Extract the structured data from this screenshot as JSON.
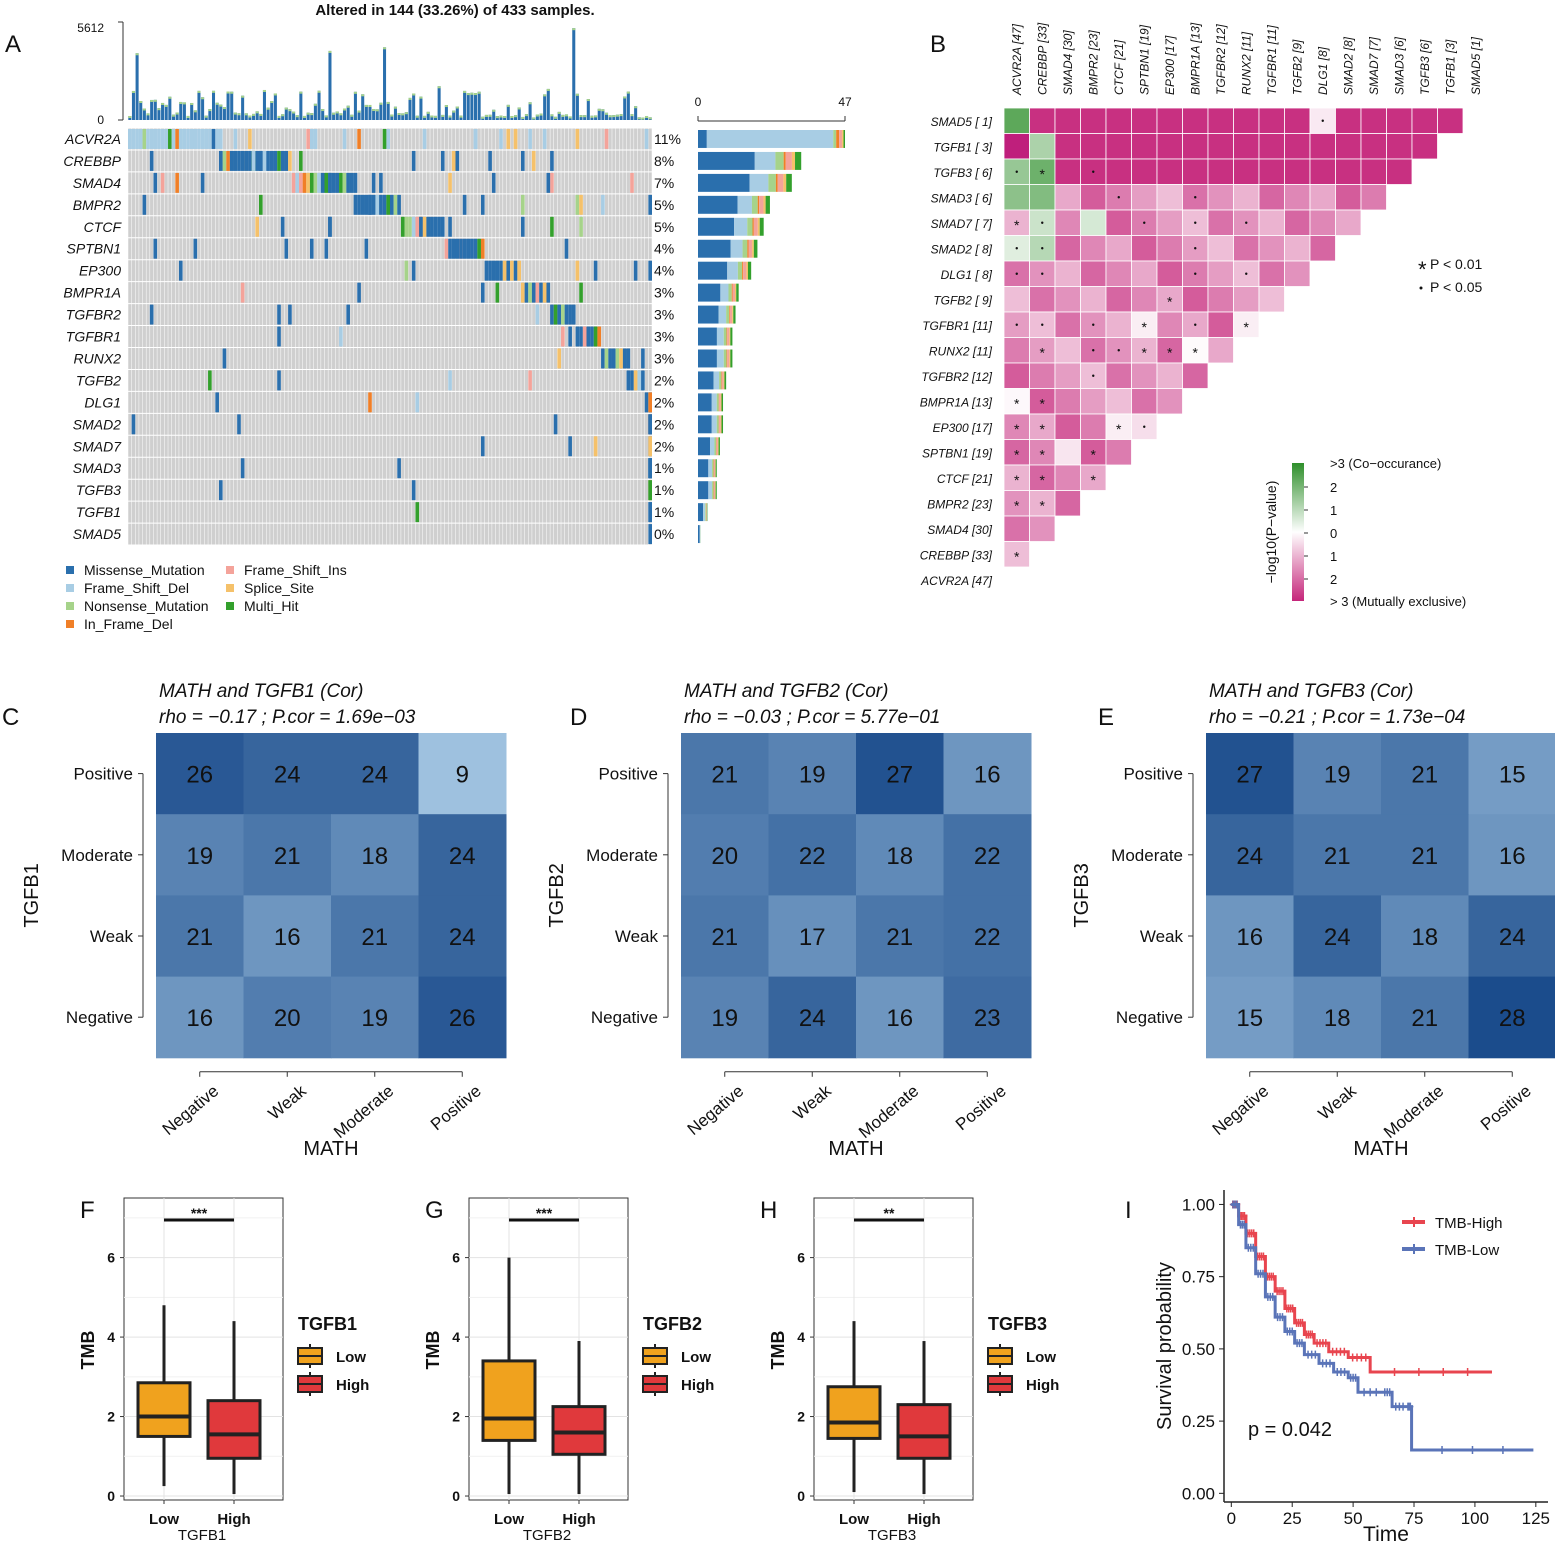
{
  "panel_labels": [
    "A",
    "B",
    "C",
    "D",
    "E",
    "F",
    "G",
    "H",
    "I"
  ],
  "colors": {
    "missense": "#2a6fad",
    "frame_del": "#a8cde4",
    "nonsense": "#a6d38a",
    "inframe_del": "#f07f27",
    "frame_ins": "#f4a39a",
    "splice": "#f5c16a",
    "multi": "#33a02c",
    "grid_bg": "#cfcfcf",
    "pink_dark": "#c5257a",
    "green_dark": "#2f8f2b",
    "heat_dark": "#1b4c8c",
    "heat_light": "#b0d1ea",
    "low_box": "#f0a21e",
    "high_box": "#e0393c",
    "km_high": "#e8454f",
    "km_low": "#5a74b8"
  },
  "chart_data": [
    {
      "panel": "A",
      "type": "bar",
      "title": "Altered in 144 (33.26%) of 433 samples.",
      "top_axis_ticks": [
        "5612",
        "0"
      ],
      "side_axis_ticks": [
        "0",
        "47"
      ],
      "genes": [
        "ACVR2A",
        "CREBBP",
        "SMAD4",
        "BMPR2",
        "CTCF",
        "SPTBN1",
        "EP300",
        "BMPR1A",
        "TGFBR2",
        "TGFBR1",
        "RUNX2",
        "TGFB2",
        "DLG1",
        "SMAD2",
        "SMAD7",
        "SMAD3",
        "TGFB3",
        "TGFB1",
        "SMAD5"
      ],
      "percent_labels": [
        "11%",
        "8%",
        "7%",
        "5%",
        "5%",
        "4%",
        "4%",
        "3%",
        "3%",
        "3%",
        "3%",
        "2%",
        "2%",
        "2%",
        "2%",
        "1%",
        "1%",
        "1%",
        "0%"
      ],
      "counts": [
        47,
        33,
        30,
        23,
        21,
        19,
        17,
        13,
        12,
        11,
        11,
        9,
        8,
        8,
        7,
        6,
        6,
        3,
        1
      ],
      "legend": [
        "Missense_Mutation",
        "Frame_Shift_Del",
        "Nonsense_Mutation",
        "In_Frame_Del",
        "Frame_Shift_Ins",
        "Splice_Site",
        "Multi_Hit"
      ]
    },
    {
      "panel": "B",
      "type": "heatmap",
      "col_labels": [
        "ACVR2A [47]",
        "CREBBP [33]",
        "SMAD4 [30]",
        "BMPR2 [23]",
        "CTCF [21]",
        "SPTBN1 [19]",
        "EP300 [17]",
        "BMPR1A [13]",
        "TGFBR2 [12]",
        "RUNX2 [11]",
        "TGFBR1 [11]",
        "TGFB2 [9]",
        "DLG1 [8]",
        "SMAD2 [8]",
        "SMAD7 [7]",
        "SMAD3 [6]",
        "TGFB3 [6]",
        "TGFB1 [3]",
        "SMAD5 [1]"
      ],
      "row_labels": [
        "SMAD5 [ 1]",
        "TGFB1 [ 3]",
        "TGFB3 [ 6]",
        "SMAD3 [ 6]",
        "SMAD7 [ 7]",
        "SMAD2 [ 8]",
        "DLG1 [ 8]",
        "TGFB2 [ 9]",
        "TGFBR1 [11]",
        "RUNX2 [11]",
        "TGFBR2 [12]",
        "BMPR1A [13]",
        "EP300 [17]",
        "SPTBN1 [19]",
        "CTCF [21]",
        "BMPR2 [23]",
        "SMAD4 [30]",
        "CREBBP [33]",
        "ACVR2A [47]"
      ],
      "sig_legend": [
        "P < 0.01",
        "P < 0.05"
      ],
      "colorbar_title": "−log10(P−value)",
      "colorbar_ticks": [
        "2",
        "1",
        "0",
        "1",
        "2"
      ],
      "colorbar_top": ">3 (Co−occurance)",
      "colorbar_bottom": "> 3 (Mutually exclusive)"
    },
    {
      "panel": "C",
      "type": "heatmap",
      "title": "MATH and TGFB1 (Cor)",
      "subtitle": "rho =  −0.17 ;  P.cor =  1.69e−03",
      "ylabel": "TGFB1",
      "xlabel": "MATH",
      "x": [
        "Negative",
        "Weak",
        "Moderate",
        "Positive"
      ],
      "y": [
        "Positive",
        "Moderate",
        "Weak",
        "Negative"
      ],
      "values": [
        [
          26,
          24,
          24,
          9
        ],
        [
          19,
          21,
          18,
          24
        ],
        [
          21,
          16,
          21,
          24
        ],
        [
          16,
          20,
          19,
          26
        ]
      ]
    },
    {
      "panel": "D",
      "type": "heatmap",
      "title": "MATH and TGFB2 (Cor)",
      "subtitle": "rho =  −0.03 ;  P.cor =  5.77e−01",
      "ylabel": "TGFB2",
      "xlabel": "MATH",
      "x": [
        "Negative",
        "Weak",
        "Moderate",
        "Positive"
      ],
      "y": [
        "Positive",
        "Moderate",
        "Weak",
        "Negative"
      ],
      "values": [
        [
          21,
          19,
          27,
          16
        ],
        [
          20,
          22,
          18,
          22
        ],
        [
          21,
          17,
          21,
          22
        ],
        [
          19,
          24,
          16,
          23
        ]
      ]
    },
    {
      "panel": "E",
      "type": "heatmap",
      "title": "MATH and TGFB3 (Cor)",
      "subtitle": "rho =  −0.21 ;  P.cor =  1.73e−04",
      "ylabel": "TGFB3",
      "xlabel": "MATH",
      "x": [
        "Negative",
        "Weak",
        "Moderate",
        "Positive"
      ],
      "y": [
        "Positive",
        "Moderate",
        "Weak",
        "Negative"
      ],
      "values": [
        [
          27,
          19,
          21,
          15
        ],
        [
          24,
          21,
          21,
          16
        ],
        [
          16,
          24,
          18,
          24
        ],
        [
          15,
          18,
          21,
          28
        ]
      ]
    },
    {
      "panel": "F",
      "type": "box",
      "ylabel": "TMB",
      "xlabel": "TGFB1",
      "categories": [
        "Low",
        "High"
      ],
      "legend_title": "TGFB1",
      "signif": "***",
      "yticks": [
        0,
        2,
        4,
        6
      ],
      "ylim": [
        -0.1,
        7.5
      ],
      "boxes": [
        {
          "min": 0.25,
          "q1": 1.5,
          "median": 2.0,
          "q3": 2.85,
          "max": 4.8
        },
        {
          "min": 0.05,
          "q1": 0.95,
          "median": 1.55,
          "q3": 2.4,
          "max": 4.4
        }
      ]
    },
    {
      "panel": "G",
      "type": "box",
      "ylabel": "TMB",
      "xlabel": "TGFB2",
      "categories": [
        "Low",
        "High"
      ],
      "legend_title": "TGFB2",
      "signif": "***",
      "yticks": [
        0,
        2,
        4,
        6
      ],
      "ylim": [
        -0.1,
        7.5
      ],
      "boxes": [
        {
          "min": 0.05,
          "q1": 1.4,
          "median": 1.95,
          "q3": 3.4,
          "max": 6.0
        },
        {
          "min": 0.05,
          "q1": 1.05,
          "median": 1.6,
          "q3": 2.25,
          "max": 3.9
        }
      ]
    },
    {
      "panel": "H",
      "type": "box",
      "ylabel": "TMB",
      "xlabel": "TGFB3",
      "categories": [
        "Low",
        "High"
      ],
      "legend_title": "TGFB3",
      "signif": "**",
      "yticks": [
        0,
        2,
        4,
        6
      ],
      "ylim": [
        -0.1,
        7.5
      ],
      "boxes": [
        {
          "min": 0.1,
          "q1": 1.45,
          "median": 1.85,
          "q3": 2.75,
          "max": 4.4
        },
        {
          "min": 0.05,
          "q1": 0.95,
          "median": 1.5,
          "q3": 2.3,
          "max": 3.9
        }
      ]
    },
    {
      "panel": "I",
      "type": "line",
      "ylabel": "Survival probability",
      "xlabel": "Time",
      "xticks": [
        0,
        25,
        50,
        75,
        100,
        125
      ],
      "yticks": [
        "0.00",
        "0.25",
        "0.50",
        "0.75",
        "1.00"
      ],
      "xlim": [
        -3,
        130
      ],
      "ylim": [
        -0.03,
        1.05
      ],
      "pvalue": "p = 0.042",
      "series": [
        {
          "name": "TMB-High",
          "x": [
            0,
            3,
            6,
            10,
            14,
            18,
            22,
            26,
            30,
            34,
            40,
            48,
            57,
            107
          ],
          "y": [
            1.0,
            0.96,
            0.9,
            0.82,
            0.75,
            0.7,
            0.64,
            0.59,
            0.55,
            0.52,
            0.49,
            0.47,
            0.42,
            0.42
          ]
        },
        {
          "name": "TMB-Low",
          "x": [
            0,
            3,
            6,
            10,
            14,
            18,
            22,
            26,
            30,
            36,
            42,
            48,
            52,
            62,
            66,
            72,
            74,
            124
          ],
          "y": [
            1.0,
            0.93,
            0.85,
            0.76,
            0.68,
            0.61,
            0.56,
            0.52,
            0.48,
            0.45,
            0.42,
            0.4,
            0.35,
            0.35,
            0.3,
            0.3,
            0.15,
            0.15
          ]
        }
      ]
    }
  ]
}
